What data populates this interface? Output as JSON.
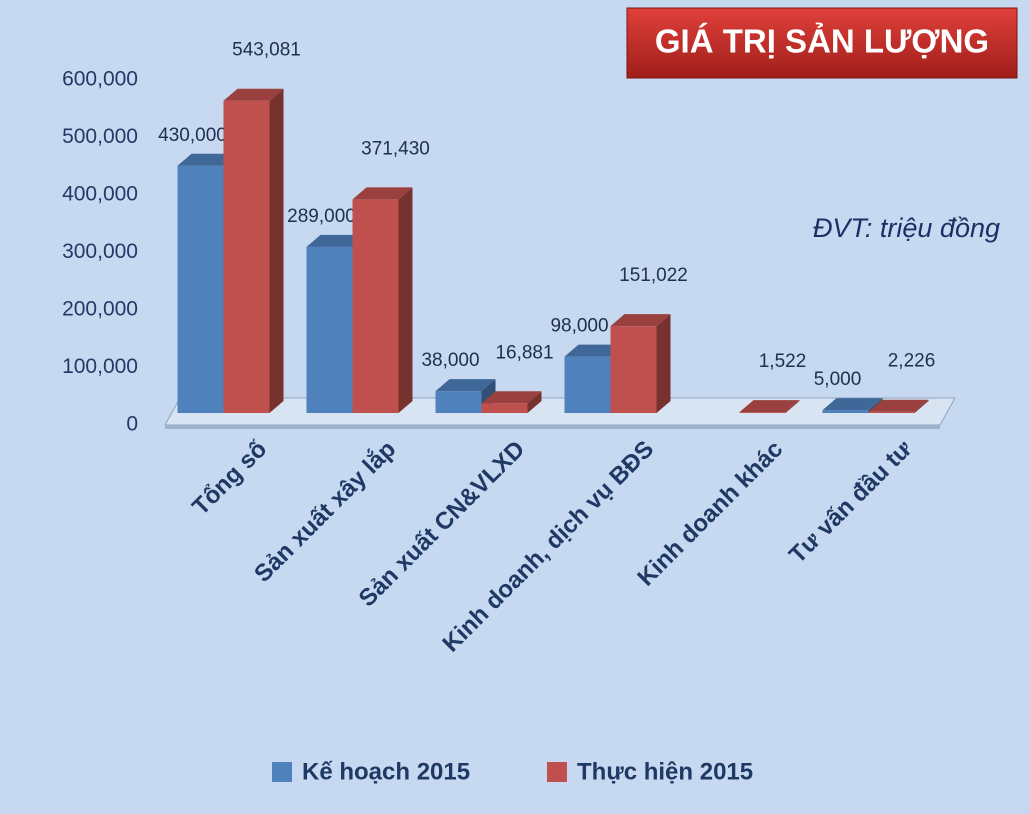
{
  "chart_data": {
    "type": "bar3d",
    "title": "GIÁ TRỊ SẢN LƯỢNG",
    "annotation": "ĐVT: triệu đồng",
    "categories": [
      "Tổng số",
      "Sản xuất xây lắp",
      "Sản xuất CN&VLXD",
      "Kinh doanh, dịch vụ BĐS",
      "Kinh doanh khác",
      "Tư vấn đầu tư"
    ],
    "series": [
      {
        "name": "Kế hoạch 2015",
        "color": "#4f81bd",
        "values": [
          430000,
          289000,
          38000,
          98000,
          null,
          5000
        ],
        "value_labels": [
          "430,000",
          "289,000",
          "38,000",
          "98,000",
          null,
          "5,000"
        ]
      },
      {
        "name": "Thực hiện 2015",
        "color": "#c0504d",
        "values": [
          543081,
          371430,
          16881,
          151022,
          1522,
          2226
        ],
        "value_labels": [
          "543,081",
          "371,430",
          "16,881",
          "151,022",
          "1,522",
          "2,226"
        ]
      }
    ],
    "ylim": [
      0,
      600000
    ],
    "yticks": [
      0,
      {
        "value": 100000,
        "label": "100,000"
      },
      {
        "value": 200000,
        "label": "200,000"
      },
      {
        "value": 300000,
        "label": "300,000"
      },
      {
        "value": 400000,
        "label": "400,000"
      },
      {
        "value": 500000,
        "label": "500,000"
      },
      {
        "value": 600000,
        "label": "600,000"
      }
    ],
    "grid": false,
    "legend": "bottom"
  }
}
